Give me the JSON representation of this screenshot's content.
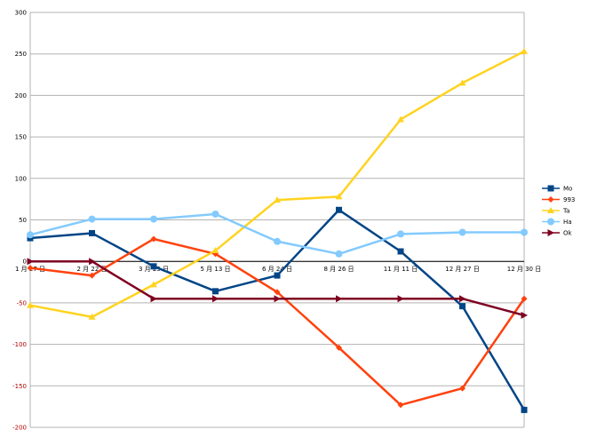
{
  "chart_data": {
    "type": "line",
    "title": "",
    "xlabel": "",
    "ylabel": "",
    "categories": [
      "1 月 27 日",
      "2 月 22 日",
      "3 月 25 日",
      "5 月 13 日",
      "6 月 24 日",
      "8 月 26 日",
      "11 月 11 日",
      "12 月 27 日",
      "12 月 30 日"
    ],
    "ylim": [
      -200,
      300
    ],
    "yticks": [
      300,
      250,
      200,
      150,
      100,
      50,
      0,
      -50,
      -100,
      -150,
      -200
    ],
    "grid": true,
    "legend_position": "right",
    "series": [
      {
        "name": "Mo",
        "color": "#004586",
        "marker": "square",
        "values": [
          28,
          34,
          -6,
          -36,
          -17,
          62,
          12,
          -54,
          -179
        ]
      },
      {
        "name": "993",
        "color": "#ff420e",
        "marker": "diamond",
        "values": [
          -8,
          -17,
          27,
          9,
          -37,
          -104,
          -173,
          -153,
          -45
        ]
      },
      {
        "name": "Ta",
        "color": "#ffd320",
        "marker": "triangle",
        "values": [
          -53,
          -67,
          -28,
          13,
          74,
          78,
          171,
          215,
          253
        ]
      },
      {
        "name": "Ha",
        "color": "#83caff",
        "marker": "circle",
        "values": [
          32,
          51,
          51,
          57,
          24,
          9,
          33,
          35,
          35
        ]
      },
      {
        "name": "Ok",
        "color": "#7e0021",
        "marker": "arrow",
        "values": [
          0,
          0,
          -45,
          -45,
          -45,
          -45,
          -45,
          -45,
          -65
        ]
      }
    ]
  }
}
